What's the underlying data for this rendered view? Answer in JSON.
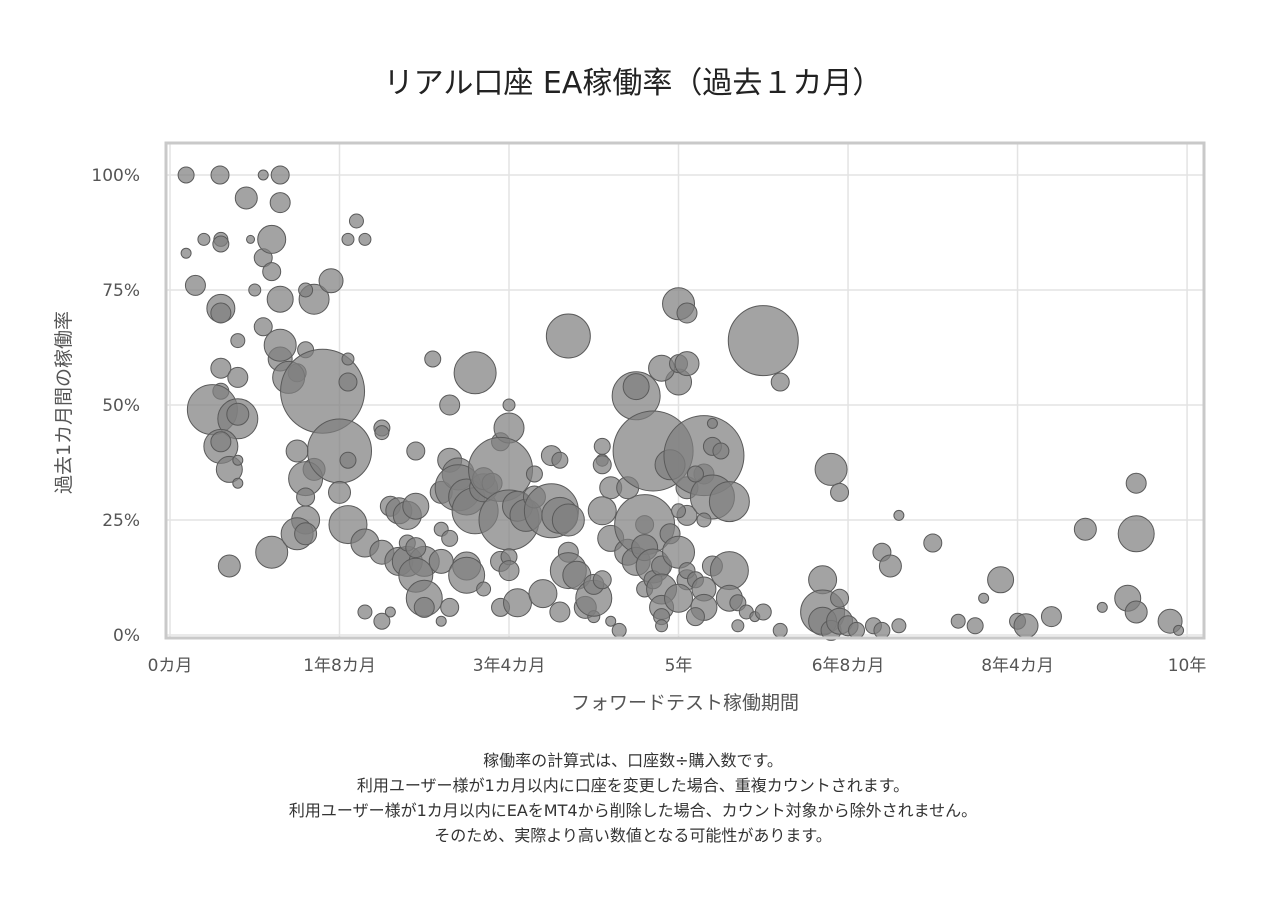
{
  "chart_data": {
    "type": "scatter",
    "title": "リアル口座 EA稼働率（過去１カ月）",
    "xlabel": "フォワードテスト稼働期間",
    "ylabel": "過去1カ月間の稼働率",
    "x_unit": "months",
    "xlim": [
      0,
      122
    ],
    "ylim": [
      0,
      100
    ],
    "x_ticks": [
      {
        "value": 0,
        "label": "0カ月"
      },
      {
        "value": 20,
        "label": "1年8カ月"
      },
      {
        "value": 40,
        "label": "3年4カ月"
      },
      {
        "value": 60,
        "label": "5年"
      },
      {
        "value": 80,
        "label": "6年8カ月"
      },
      {
        "value": 100,
        "label": "8年4カ月"
      },
      {
        "value": 120,
        "label": "10年"
      }
    ],
    "y_ticks": [
      {
        "value": 0,
        "label": "0%"
      },
      {
        "value": 25,
        "label": "25%"
      },
      {
        "value": 50,
        "label": "50%"
      },
      {
        "value": 75,
        "label": "75%"
      },
      {
        "value": 100,
        "label": "100%"
      }
    ],
    "grid": true,
    "legend": "none",
    "marker_color": "#808080",
    "marker_edge_color": "#5a5a5a",
    "points_note": "each point: [months, rate %, relative bubble size]",
    "points": [
      [
        1.9,
        100,
        8
      ],
      [
        5.9,
        100,
        9
      ],
      [
        11,
        100,
        5
      ],
      [
        13,
        100,
        9
      ],
      [
        9,
        95,
        11
      ],
      [
        13,
        94,
        10
      ],
      [
        1.9,
        83,
        5
      ],
      [
        4,
        86,
        6
      ],
      [
        6,
        86,
        7
      ],
      [
        6,
        85,
        8
      ],
      [
        9.5,
        86,
        4
      ],
      [
        21,
        86,
        6
      ],
      [
        23,
        86,
        6
      ],
      [
        22,
        90,
        7
      ],
      [
        3,
        76,
        10
      ],
      [
        10,
        75,
        6
      ],
      [
        13,
        73,
        13
      ],
      [
        11,
        82,
        9
      ],
      [
        12,
        86,
        14
      ],
      [
        12,
        79,
        9
      ],
      [
        17,
        73,
        15
      ],
      [
        19,
        77,
        12
      ],
      [
        16,
        75,
        7
      ],
      [
        6,
        71,
        14
      ],
      [
        6,
        70,
        10
      ],
      [
        8,
        64,
        7
      ],
      [
        11,
        67,
        9
      ],
      [
        13,
        60,
        12
      ],
      [
        13,
        63,
        16
      ],
      [
        15,
        57,
        9
      ],
      [
        14,
        56,
        16
      ],
      [
        16,
        62,
        8
      ],
      [
        18,
        53,
        42
      ],
      [
        21,
        60,
        6
      ],
      [
        21,
        55,
        9
      ],
      [
        6,
        58,
        10
      ],
      [
        6,
        53,
        8
      ],
      [
        8,
        56,
        10
      ],
      [
        5,
        49,
        25
      ],
      [
        8,
        47,
        20
      ],
      [
        8,
        48,
        11
      ],
      [
        6,
        41,
        17
      ],
      [
        6,
        42,
        10
      ],
      [
        7,
        36,
        13
      ],
      [
        8,
        38,
        5
      ],
      [
        8,
        33,
        5
      ],
      [
        7,
        15,
        11
      ],
      [
        12,
        18,
        16
      ],
      [
        15,
        40,
        11
      ],
      [
        17,
        36,
        11
      ],
      [
        16,
        34,
        17
      ],
      [
        16,
        30,
        9
      ],
      [
        16,
        25,
        14
      ],
      [
        15,
        22,
        16
      ],
      [
        16,
        22,
        11
      ],
      [
        20,
        40,
        32
      ],
      [
        21,
        38,
        8
      ],
      [
        20,
        31,
        11
      ],
      [
        21,
        24,
        19
      ],
      [
        23,
        20,
        14
      ],
      [
        23,
        5,
        7
      ],
      [
        25,
        3,
        8
      ],
      [
        26,
        5,
        5
      ],
      [
        25,
        45,
        8
      ],
      [
        25,
        44,
        7
      ],
      [
        26,
        28,
        10
      ],
      [
        27,
        27,
        13
      ],
      [
        28,
        26,
        14
      ],
      [
        29,
        28,
        13
      ],
      [
        25,
        18,
        12
      ],
      [
        27,
        16,
        14
      ],
      [
        28,
        16,
        15
      ],
      [
        30,
        16,
        15
      ],
      [
        29,
        13,
        17
      ],
      [
        28,
        20,
        8
      ],
      [
        29,
        19,
        10
      ],
      [
        29,
        40,
        9
      ],
      [
        32,
        31,
        11
      ],
      [
        32,
        23,
        7
      ],
      [
        33,
        21,
        8
      ],
      [
        32,
        16,
        12
      ],
      [
        30,
        8,
        18
      ],
      [
        30,
        6,
        10
      ],
      [
        32,
        3,
        5
      ],
      [
        33,
        6,
        9
      ],
      [
        31,
        60,
        8
      ],
      [
        33,
        50,
        10
      ],
      [
        36,
        57,
        21
      ],
      [
        33,
        38,
        12
      ],
      [
        34,
        35,
        16
      ],
      [
        34,
        32,
        23
      ],
      [
        35,
        30,
        18
      ],
      [
        36,
        27,
        23
      ],
      [
        37,
        32,
        14
      ],
      [
        37,
        34,
        11
      ],
      [
        38,
        33,
        10
      ],
      [
        39,
        42,
        9
      ],
      [
        40,
        45,
        15
      ],
      [
        40,
        50,
        6
      ],
      [
        39,
        36,
        32
      ],
      [
        40,
        25,
        30
      ],
      [
        41,
        28,
        15
      ],
      [
        42,
        26,
        16
      ],
      [
        43,
        35,
        8
      ],
      [
        43,
        30,
        11
      ],
      [
        45,
        27,
        27
      ],
      [
        45,
        39,
        10
      ],
      [
        46,
        26,
        18
      ],
      [
        47,
        25,
        16
      ],
      [
        46,
        38,
        8
      ],
      [
        35,
        15,
        14
      ],
      [
        35,
        13,
        18
      ],
      [
        37,
        10,
        7
      ],
      [
        39,
        16,
        10
      ],
      [
        39,
        6,
        9
      ],
      [
        40,
        17,
        8
      ],
      [
        40,
        14,
        10
      ],
      [
        41,
        7,
        14
      ],
      [
        44,
        9,
        14
      ],
      [
        46,
        5,
        10
      ],
      [
        47,
        18,
        10
      ],
      [
        47,
        14,
        18
      ],
      [
        48,
        13,
        14
      ],
      [
        49,
        6,
        11
      ],
      [
        50,
        4,
        6
      ],
      [
        50,
        8,
        18
      ],
      [
        50,
        11,
        10
      ],
      [
        51,
        12,
        9
      ],
      [
        52,
        3,
        5
      ],
      [
        53,
        1,
        7
      ],
      [
        51,
        38,
        6
      ],
      [
        51,
        41,
        8
      ],
      [
        51,
        37,
        9
      ],
      [
        52,
        32,
        11
      ],
      [
        51,
        27,
        14
      ],
      [
        52,
        21,
        13
      ],
      [
        54,
        18,
        13
      ],
      [
        56,
        24,
        9
      ],
      [
        56,
        24,
        30
      ],
      [
        55,
        16,
        14
      ],
      [
        56,
        19,
        13
      ],
      [
        57,
        15,
        17
      ],
      [
        56,
        10,
        8
      ],
      [
        57,
        12,
        9
      ],
      [
        58,
        15,
        10
      ],
      [
        58,
        10,
        15
      ],
      [
        58,
        6,
        12
      ],
      [
        58,
        4,
        8
      ],
      [
        58,
        2,
        6
      ],
      [
        47,
        65,
        22
      ],
      [
        55,
        52,
        24
      ],
      [
        55,
        54,
        13
      ],
      [
        54,
        32,
        11
      ],
      [
        57,
        40,
        40
      ],
      [
        59,
        37,
        15
      ],
      [
        60,
        55,
        13
      ],
      [
        61,
        32,
        11
      ],
      [
        61,
        26,
        10
      ],
      [
        63,
        35,
        10
      ],
      [
        63,
        39,
        40
      ],
      [
        64,
        30,
        22
      ],
      [
        62,
        35,
        8
      ],
      [
        60,
        27,
        7
      ],
      [
        59,
        22,
        10
      ],
      [
        60,
        18,
        16
      ],
      [
        61,
        12,
        10
      ],
      [
        60,
        8,
        14
      ],
      [
        61,
        14,
        8
      ],
      [
        62,
        12,
        8
      ],
      [
        63,
        10,
        12
      ],
      [
        63,
        6,
        13
      ],
      [
        62,
        4,
        9
      ],
      [
        63,
        25,
        7
      ],
      [
        64,
        41,
        9
      ],
      [
        65,
        40,
        8
      ],
      [
        66,
        29,
        20
      ],
      [
        58,
        58,
        13
      ],
      [
        60,
        72,
        16
      ],
      [
        60,
        59,
        9
      ],
      [
        61,
        70,
        10
      ],
      [
        61,
        59,
        12
      ],
      [
        70,
        64,
        35
      ],
      [
        72,
        55,
        9
      ],
      [
        64,
        46,
        5
      ],
      [
        64,
        15,
        10
      ],
      [
        66,
        14,
        19
      ],
      [
        66,
        8,
        13
      ],
      [
        67,
        7,
        8
      ],
      [
        67,
        2,
        6
      ],
      [
        68,
        5,
        7
      ],
      [
        69,
        4,
        5
      ],
      [
        70,
        5,
        8
      ],
      [
        72,
        1,
        7
      ],
      [
        77,
        12,
        14
      ],
      [
        77,
        5,
        22
      ],
      [
        77,
        3,
        14
      ],
      [
        78,
        1,
        10
      ],
      [
        78,
        36,
        16
      ],
      [
        79,
        31,
        9
      ],
      [
        79,
        8,
        9
      ],
      [
        79,
        3,
        13
      ],
      [
        80,
        2,
        10
      ],
      [
        81,
        1,
        8
      ],
      [
        83,
        2,
        8
      ],
      [
        84,
        18,
        9
      ],
      [
        84,
        1,
        8
      ],
      [
        85,
        15,
        11
      ],
      [
        86,
        2,
        7
      ],
      [
        86,
        26,
        5
      ],
      [
        90,
        20,
        9
      ],
      [
        93,
        3,
        7
      ],
      [
        95,
        2,
        8
      ],
      [
        96,
        8,
        5
      ],
      [
        98,
        12,
        13
      ],
      [
        100,
        3,
        8
      ],
      [
        101,
        2,
        12
      ],
      [
        104,
        4,
        10
      ],
      [
        108,
        23,
        11
      ],
      [
        110,
        6,
        5
      ],
      [
        113,
        8,
        13
      ],
      [
        114,
        5,
        11
      ],
      [
        114,
        33,
        10
      ],
      [
        114,
        22,
        18
      ],
      [
        118,
        3,
        12
      ],
      [
        119,
        1,
        5
      ]
    ]
  },
  "notes": [
    "稼働率の計算式は、口座数÷購入数です。",
    "利用ユーザー様が1カ月以内に口座を変更した場合、重複カウントされます。",
    "利用ユーザー様が1カ月以内にEAをMT4から削除した場合、カウント対象から除外されません。",
    "そのため、実際より高い数値となる可能性があります。"
  ]
}
